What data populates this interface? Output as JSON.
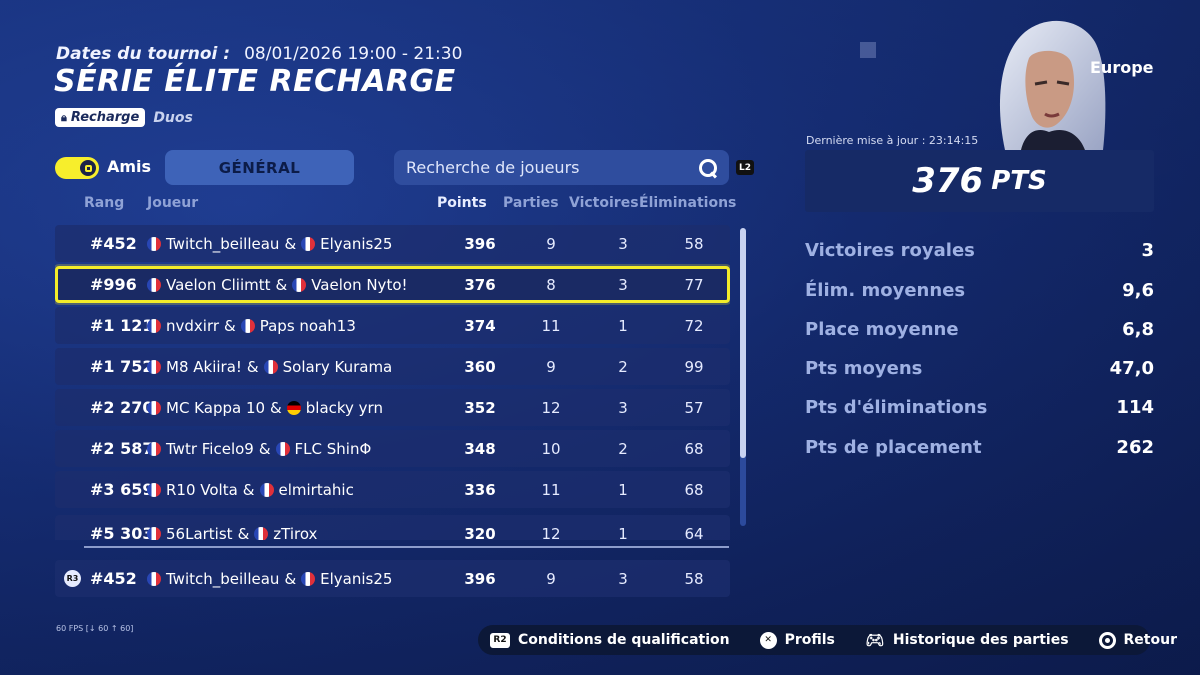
{
  "header": {
    "dates_label": "Dates du tournoi :",
    "dates_value": "08/01/2026 19:00 - 21:30",
    "title": "SÉRIE ÉLITE RECHARGE",
    "badge_label": "Recharge",
    "mode": "Duos"
  },
  "controls": {
    "friends_label": "Amis",
    "general_tab": "GÉNÉRAL",
    "search_placeholder": "Recherche de joueurs",
    "l2_label": "L2"
  },
  "columns": {
    "rank": "Rang",
    "player": "Joueur",
    "points": "Points",
    "games": "Parties",
    "wins": "Victoires",
    "elims": "Éliminations"
  },
  "rows": [
    {
      "rank": "#452",
      "p1": "Twitch_beilleau",
      "p1_flag": "fr",
      "p2": "Elyanis25",
      "p2_flag": "fr",
      "points": "396",
      "games": "9",
      "wins": "3",
      "elims": "58"
    },
    {
      "rank": "#996",
      "p1": "Vaelon Cliimtt",
      "p1_flag": "fr",
      "p2": "Vaelon Nyto!",
      "p2_flag": "fr",
      "points": "376",
      "games": "8",
      "wins": "3",
      "elims": "77",
      "highlighted": true
    },
    {
      "rank": "#1 121",
      "p1": "nvdxirr",
      "p1_flag": "fr",
      "p2": "Paps noah13",
      "p2_flag": "fr",
      "points": "374",
      "games": "11",
      "wins": "1",
      "elims": "72"
    },
    {
      "rank": "#1 752",
      "p1": "M8 Akiira!",
      "p1_flag": "fr",
      "p2": "Solary Kurama",
      "p2_flag": "fr",
      "points": "360",
      "games": "9",
      "wins": "2",
      "elims": "99"
    },
    {
      "rank": "#2 270",
      "p1": "MC Kappa 10",
      "p1_flag": "fr",
      "p2": "blacky yrn",
      "p2_flag": "de",
      "points": "352",
      "games": "12",
      "wins": "3",
      "elims": "57"
    },
    {
      "rank": "#2 587",
      "p1": "Twtr Ficelo9",
      "p1_flag": "fr",
      "p2": "FLC ShinΦ",
      "p2_flag": "fr",
      "points": "348",
      "games": "10",
      "wins": "2",
      "elims": "68"
    },
    {
      "rank": "#3 659",
      "p1": "R10 Volta",
      "p1_flag": "fr",
      "p2": "elmirtahic",
      "p2_flag": "fr",
      "points": "336",
      "games": "11",
      "wins": "1",
      "elims": "68"
    },
    {
      "rank": "#5 303",
      "p1": "56Lartist",
      "p1_flag": "fr",
      "p2": "zTirox",
      "p2_flag": "fr",
      "points": "320",
      "games": "12",
      "wins": "1",
      "elims": "64"
    }
  ],
  "my_row": {
    "rank": "#452",
    "p1": "Twitch_beilleau",
    "p2": "Elyanis25",
    "points": "396",
    "games": "9",
    "wins": "3",
    "elims": "58",
    "r3_label": "R3"
  },
  "panel": {
    "region": "Europe",
    "last_update": "Dernière mise à jour : 23:14:15",
    "total_points": "376",
    "points_unit": "PTS",
    "stats": [
      {
        "label": "Victoires royales",
        "value": "3"
      },
      {
        "label": "Élim. moyennes",
        "value": "9,6"
      },
      {
        "label": "Place moyenne",
        "value": "6,8"
      },
      {
        "label": "Pts moyens",
        "value": "47,0"
      },
      {
        "label": "Pts d'éliminations",
        "value": "114"
      },
      {
        "label": "Pts de placement",
        "value": "262"
      }
    ]
  },
  "fps": "60 FPS [↓ 60 ↑ 60]",
  "footer": [
    {
      "icon": "R2",
      "label": "Conditions de qualification"
    },
    {
      "icon": "✕",
      "label": "Profils"
    },
    {
      "icon": "gamepad-icon",
      "label": "Historique des parties"
    },
    {
      "icon": "circle-button-icon",
      "label": "Retour"
    }
  ]
}
